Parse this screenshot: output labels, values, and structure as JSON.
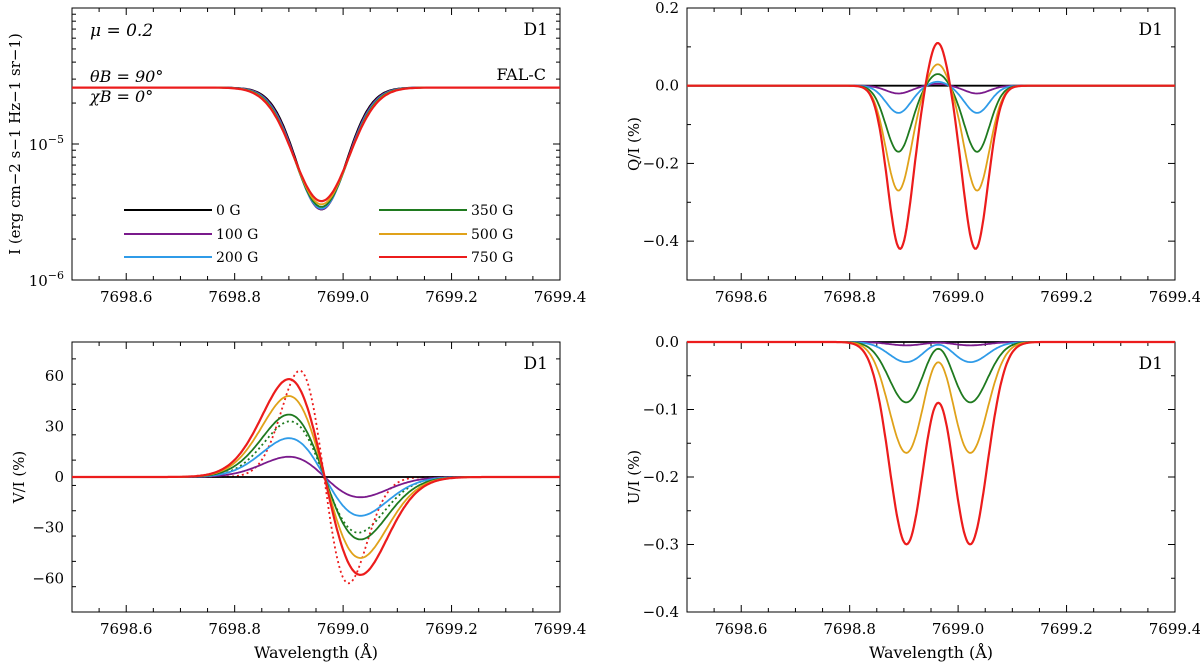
{
  "colors": {
    "0 G": "#000000",
    "100 G": "#7a1a8c",
    "200 G": "#2f9be8",
    "350 G": "#1f7a1f",
    "500 G": "#e0a21a",
    "750 G": "#ec1c1c"
  },
  "chart_data": [
    {
      "id": "I",
      "type": "line",
      "yscale": "log",
      "xlim": [
        7698.5,
        7699.4
      ],
      "ylim": [
        1e-06,
        0.0001
      ],
      "xticks": [
        7698.6,
        7698.8,
        7699.0,
        7699.2,
        7699.4
      ],
      "xticklabels": [
        "7698.6",
        "7698.8",
        "7699.0",
        "7699.2",
        "7699.4"
      ],
      "yticks": [
        1e-06,
        1e-05
      ],
      "yticklabels": [
        {
          "base": "10",
          "exp": "−6"
        },
        {
          "base": "10",
          "exp": "−5"
        }
      ],
      "ylabel": "I (erg cm−2 s−1 Hz−1 sr−1)",
      "xlabel": "",
      "corner_label": "D1",
      "annotations": {
        "mu": "μ = 0.2",
        "theta": "θB = 90°",
        "chi": "χB = 0°",
        "model": "FAL-C"
      },
      "legend": [
        "0 G",
        "100 G",
        "200 G",
        "350 G",
        "500 G",
        "750 G"
      ],
      "profile": {
        "continuum": 2.6e-05,
        "center": 7698.96,
        "depth_by_field": {
          "0 G": 3.3e-06,
          "100 G": 3.3e-06,
          "200 G": 3.35e-06,
          "350 G": 3.45e-06,
          "500 G": 3.6e-06,
          "750 G": 3.8e-06
        }
      }
    },
    {
      "id": "Q",
      "type": "line",
      "xlim": [
        7698.5,
        7699.4
      ],
      "ylim": [
        -0.5,
        0.2
      ],
      "xticks": [
        7698.6,
        7698.8,
        7699.0,
        7699.2,
        7699.4
      ],
      "xticklabels": [
        "7698.6",
        "7698.8",
        "7699.0",
        "7699.2",
        "7699.4"
      ],
      "yticks": [
        -0.4,
        -0.2,
        0.0,
        0.2
      ],
      "yticklabels": [
        "−0.4",
        "−0.2",
        "0.0",
        "0.2"
      ],
      "ylabel": "Q/I (%)",
      "xlabel": "",
      "corner_label": "D1",
      "series": [
        {
          "name": "0 G",
          "lobe_centers": [
            7698.89,
            7699.035
          ],
          "lobe_min": 0.0,
          "central_peak": 0.0
        },
        {
          "name": "100 G",
          "lobe_centers": [
            7698.89,
            7699.035
          ],
          "lobe_min": -0.02,
          "central_peak": 0.005
        },
        {
          "name": "200 G",
          "lobe_centers": [
            7698.89,
            7699.035
          ],
          "lobe_min": -0.07,
          "central_peak": 0.01
        },
        {
          "name": "350 G",
          "lobe_centers": [
            7698.89,
            7699.035
          ],
          "lobe_min": -0.17,
          "central_peak": 0.03
        },
        {
          "name": "500 G",
          "lobe_centers": [
            7698.89,
            7699.035
          ],
          "lobe_min": -0.27,
          "central_peak": 0.055
        },
        {
          "name": "750 G",
          "lobe_centers": [
            7698.893,
            7699.032
          ],
          "lobe_min": -0.42,
          "central_peak": 0.11
        }
      ]
    },
    {
      "id": "V",
      "type": "line",
      "xlim": [
        7698.5,
        7699.4
      ],
      "ylim": [
        -80,
        80
      ],
      "xticks": [
        7698.6,
        7698.8,
        7699.0,
        7699.2,
        7699.4
      ],
      "xticklabels": [
        "7698.6",
        "7698.8",
        "7699.0",
        "7699.2",
        "7699.4"
      ],
      "yticks": [
        -60,
        -30,
        0,
        30,
        60
      ],
      "yticklabels": [
        "−60",
        "−30",
        "0",
        "30",
        "60"
      ],
      "ylabel": "V/I (%)",
      "xlabel": "Wavelength (Å)",
      "corner_label": "D1",
      "series": [
        {
          "name": "0 G",
          "peak": 0,
          "peak_x": 7698.9
        },
        {
          "name": "100 G",
          "peak": 12,
          "peak_x": 7698.9
        },
        {
          "name": "200 G",
          "peak": 23,
          "peak_x": 7698.9
        },
        {
          "name": "350 G",
          "peak": 37,
          "peak_x": 7698.9
        },
        {
          "name": "500 G",
          "peak": 48,
          "peak_x": 7698.9
        },
        {
          "name": "750 G",
          "peak": 58,
          "peak_x": 7698.9
        }
      ],
      "dotted_series": [
        {
          "name": "350 G (dotted)",
          "peak": 33,
          "peak_x": 7698.91
        },
        {
          "name": "750 G (dotted)",
          "peak": 63,
          "peak_x": 7698.92
        }
      ]
    },
    {
      "id": "U",
      "type": "line",
      "xlim": [
        7698.5,
        7699.4
      ],
      "ylim": [
        -0.4,
        0.0
      ],
      "xticks": [
        7698.6,
        7698.8,
        7699.0,
        7699.2,
        7699.4
      ],
      "xticklabels": [
        "7698.6",
        "7698.8",
        "7699.0",
        "7699.2",
        "7699.4"
      ],
      "yticks": [
        -0.4,
        -0.3,
        -0.2,
        -0.1,
        0.0
      ],
      "yticklabels": [
        "−0.4",
        "−0.3",
        "−0.2",
        "−0.1",
        "0.0"
      ],
      "ylabel": "U/I (%)",
      "xlabel": "Wavelength (Å)",
      "corner_label": "D1",
      "series": [
        {
          "name": "0 G",
          "lobe_min": 0.0,
          "center_value": 0.0
        },
        {
          "name": "100 G",
          "lobe_min": -0.005,
          "center_value": -0.001
        },
        {
          "name": "200 G",
          "lobe_min": -0.03,
          "center_value": -0.004
        },
        {
          "name": "350 G",
          "lobe_min": -0.09,
          "center_value": -0.01
        },
        {
          "name": "500 G",
          "lobe_min": -0.165,
          "center_value": -0.03
        },
        {
          "name": "750 G",
          "lobe_min": -0.3,
          "center_value": -0.09
        }
      ]
    }
  ]
}
